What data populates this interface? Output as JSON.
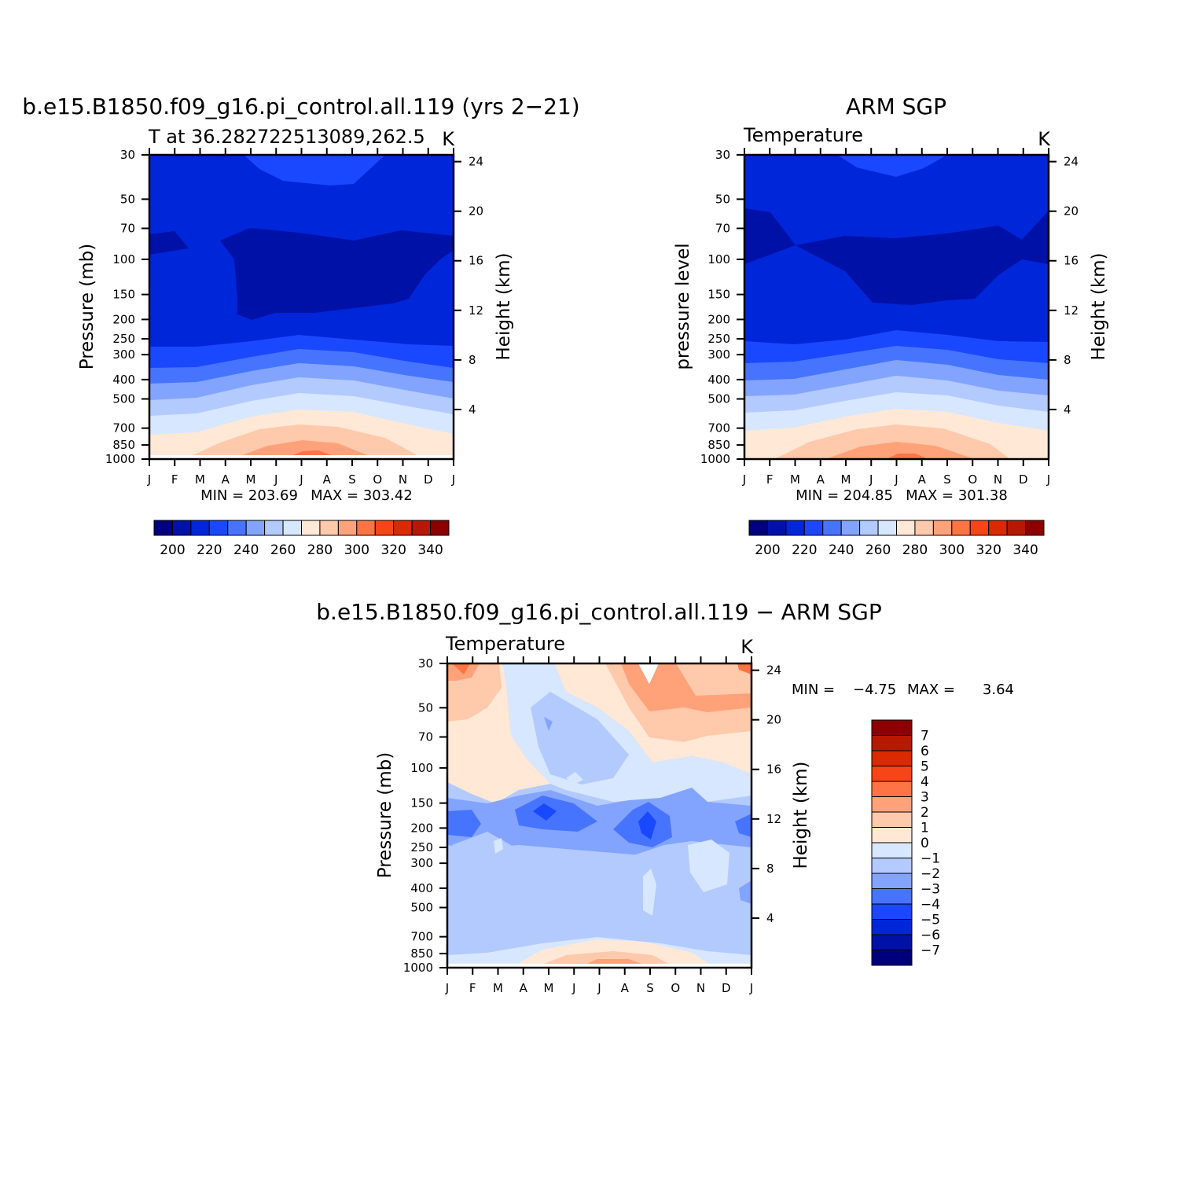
{
  "chart_data": [
    {
      "type": "heatmap",
      "title": "b.e15.B1850.f09_g16.pi_control.all.119 (yrs 2−21)",
      "subtitle_left": "T at 36.282722513089,262.5",
      "units": "K",
      "ylabel": "Pressure (mb)",
      "ylabel_right": "Height (km)",
      "months": [
        "J",
        "F",
        "M",
        "A",
        "M",
        "J",
        "J",
        "A",
        "S",
        "O",
        "N",
        "D",
        "J"
      ],
      "pressure_ticks": [
        "30",
        "50",
        "70",
        "100",
        "150",
        "200",
        "250",
        "300",
        "400",
        "500",
        "700",
        "850",
        "1000"
      ],
      "height_ticks": [
        "24",
        "20",
        "16",
        "12",
        "8",
        "4"
      ],
      "min_label": "MIN = 203.69",
      "max_label": "MAX = 303.42",
      "colorbar_labels": [
        "200",
        "220",
        "240",
        "260",
        "280",
        "300",
        "320",
        "340"
      ],
      "colorbar_colors": [
        "#00007f",
        "#0011a8",
        "#0026d9",
        "#1a48ff",
        "#4774ff",
        "#82a4ff",
        "#b3caff",
        "#d7e7ff",
        "#ffe8d6",
        "#ffc9ab",
        "#ffa27a",
        "#ff7444",
        "#f84518",
        "#d92a00",
        "#b51a00",
        "#8b0000"
      ],
      "level_colors_surface_to_top": [
        "#ffe8d6",
        "#ffe8d6",
        "#d7e7ff",
        "#b3caff",
        "#82a4ff",
        "#4774ff",
        "#1a48ff",
        "#0026d9",
        "#0011a8"
      ],
      "summer_surface_max_colors": [
        "#ffc9ab",
        "#ffa27a",
        "#ff7444"
      ],
      "temperature_range": [
        203.69,
        303.42
      ]
    },
    {
      "type": "heatmap",
      "title": "ARM SGP",
      "subtitle_left": "Temperature",
      "units": "K",
      "ylabel": "pressure level",
      "ylabel_right": "Height (km)",
      "months": [
        "J",
        "F",
        "M",
        "A",
        "M",
        "J",
        "J",
        "A",
        "S",
        "O",
        "N",
        "D",
        "J"
      ],
      "pressure_ticks": [
        "30",
        "50",
        "70",
        "100",
        "150",
        "200",
        "250",
        "300",
        "400",
        "500",
        "700",
        "850",
        "1000"
      ],
      "height_ticks": [
        "24",
        "20",
        "16",
        "12",
        "8",
        "4"
      ],
      "min_label": "MIN = 204.85",
      "max_label": "MAX = 301.38",
      "colorbar_labels": [
        "200",
        "220",
        "240",
        "260",
        "280",
        "300",
        "320",
        "340"
      ],
      "colorbar_colors": [
        "#00007f",
        "#0011a8",
        "#0026d9",
        "#1a48ff",
        "#4774ff",
        "#82a4ff",
        "#b3caff",
        "#d7e7ff",
        "#ffe8d6",
        "#ffc9ab",
        "#ffa27a",
        "#ff7444",
        "#f84518",
        "#d92a00",
        "#b51a00",
        "#8b0000"
      ],
      "temperature_range": [
        204.85,
        301.38
      ]
    },
    {
      "type": "heatmap",
      "title": "b.e15.B1850.f09_g16.pi_control.all.119 − ARM SGP",
      "subtitle_left": "Temperature",
      "units": "K",
      "ylabel": "Pressure (mb)",
      "ylabel_right": "Height (km)",
      "months": [
        "J",
        "F",
        "M",
        "A",
        "M",
        "J",
        "J",
        "A",
        "S",
        "O",
        "N",
        "D",
        "J"
      ],
      "pressure_ticks": [
        "30",
        "50",
        "70",
        "100",
        "150",
        "200",
        "250",
        "300",
        "400",
        "500",
        "700",
        "850",
        "1000"
      ],
      "height_ticks": [
        "24",
        "20",
        "16",
        "12",
        "8",
        "4"
      ],
      "min_label": "MIN =",
      "min_value": "−4.75",
      "max_label": "MAX =",
      "max_value": "3.64",
      "difference_range": [
        -4.75,
        3.64
      ],
      "colorbar_orientation": "vertical",
      "colorbar_labels": [
        "7",
        "6",
        "5",
        "4",
        "3",
        "2",
        "1",
        "0",
        "−1",
        "−2",
        "−3",
        "−4",
        "−5",
        "−6",
        "−7"
      ],
      "colorbar_colors_top_to_bottom": [
        "#8b0000",
        "#b51a00",
        "#d92a00",
        "#f84518",
        "#ff7444",
        "#ffa27a",
        "#ffc9ab",
        "#ffe8d6",
        "#d7e7ff",
        "#b3caff",
        "#82a4ff",
        "#4774ff",
        "#1a48ff",
        "#0026d9",
        "#0011a8",
        "#00007f"
      ]
    }
  ]
}
